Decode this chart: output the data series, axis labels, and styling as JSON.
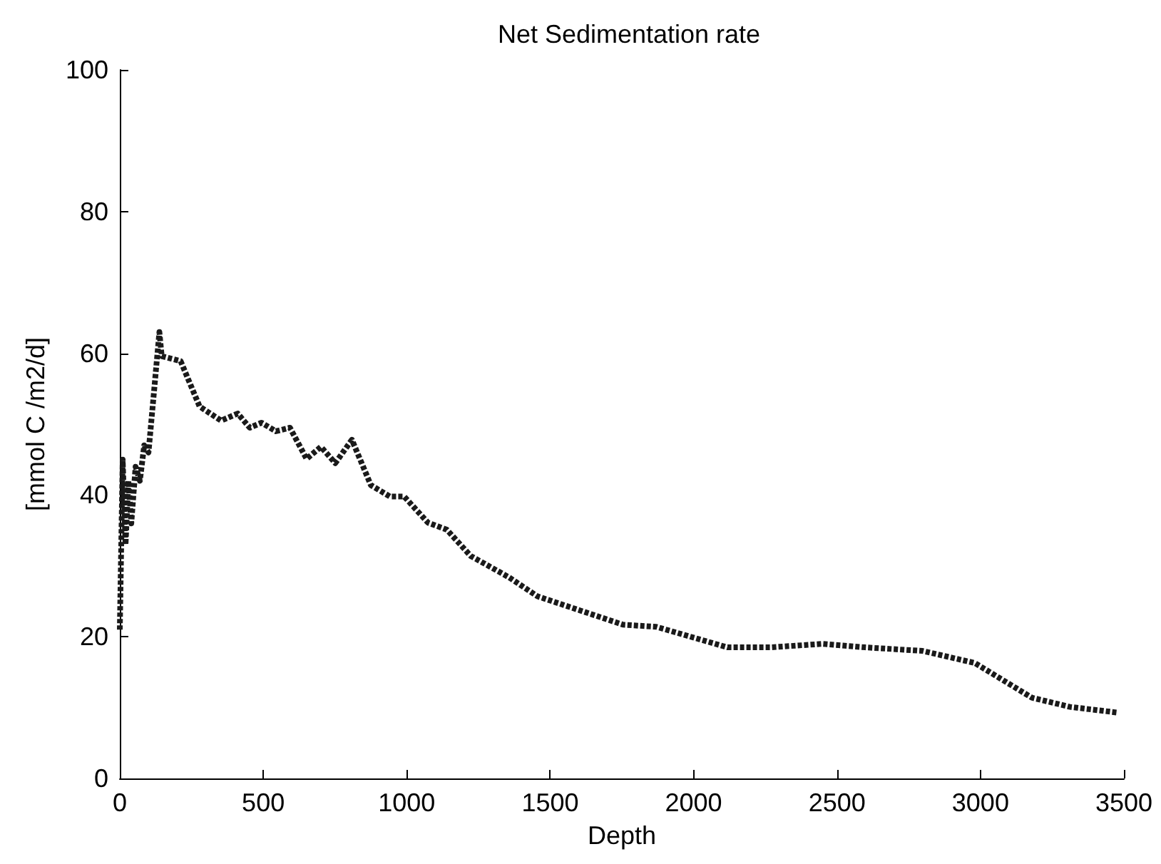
{
  "chart_data": {
    "type": "line",
    "title": "Net Sedimentation rate",
    "xlabel": "Depth",
    "ylabel": "[mmol C /m2/d]",
    "x": [
      0,
      10,
      20,
      30,
      40,
      55,
      70,
      85,
      100,
      138,
      146,
      212,
      278,
      353,
      411,
      453,
      494,
      544,
      593,
      651,
      701,
      751,
      809,
      875,
      941,
      991,
      1074,
      1140,
      1223,
      1356,
      1456,
      1605,
      1754,
      1870,
      2118,
      2268,
      2450,
      2599,
      2798,
      2980,
      3179,
      3312,
      3477
    ],
    "series": [
      {
        "color": "#1a1a1a",
        "values": [
          21,
          45,
          33,
          42,
          36,
          44,
          42,
          47,
          46,
          63,
          59.6,
          58.9,
          52.5,
          50.5,
          51.5,
          49.5,
          50.2,
          49,
          49.5,
          45.1,
          46.8,
          44.5,
          47.8,
          41.4,
          39.8,
          39.8,
          36.1,
          35.1,
          31.4,
          28.4,
          25.7,
          23.7,
          21.7,
          21.4,
          18.5,
          18.5,
          19,
          18.5,
          18,
          16.3,
          11.4,
          10.1,
          9.3
        ]
      }
    ],
    "xlim": [
      0,
      3500
    ],
    "xticks": [
      0,
      500,
      1000,
      1500,
      2000,
      2500,
      3000,
      3500
    ],
    "ylim": [
      0,
      100
    ],
    "yticks": [
      0,
      20,
      40,
      60,
      80,
      100
    ],
    "marker": "none",
    "line_style": "dashed"
  }
}
